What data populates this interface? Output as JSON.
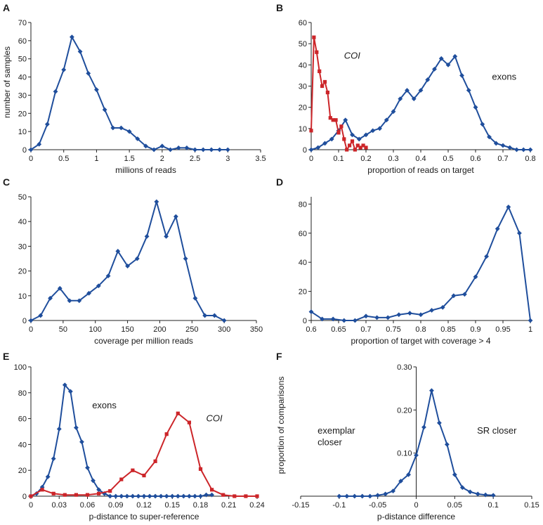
{
  "colors": {
    "blue": "#1f4e9c",
    "red": "#cc2529",
    "axis": "#222222"
  },
  "chart_data": [
    {
      "letter": "A",
      "type": "line",
      "xlabel": "millions of reads",
      "ylabel": "number of samples",
      "xlim": [
        0,
        3.5
      ],
      "ylim": [
        0,
        70
      ],
      "xticks": [
        0,
        0.5,
        1,
        1.5,
        2,
        2.5,
        3,
        3.5
      ],
      "xticklabels": [
        "0",
        "0.5",
        "1",
        "1.5",
        "2",
        "2.5",
        "3",
        "3.5"
      ],
      "yticks": [
        0,
        10,
        20,
        30,
        40,
        50,
        60,
        70
      ],
      "yticklabels": [
        "0",
        "10",
        "20",
        "30",
        "40",
        "50",
        "60",
        "70"
      ],
      "series": [
        {
          "color": "#1f4e9c",
          "marker": "diamond",
          "x": [
            0,
            0.125,
            0.25,
            0.375,
            0.5,
            0.625,
            0.75,
            0.875,
            1.0,
            1.125,
            1.25,
            1.375,
            1.5,
            1.625,
            1.75,
            1.875,
            2.0,
            2.125,
            2.25,
            2.375,
            2.5,
            2.625,
            2.75,
            2.875,
            3.0
          ],
          "y": [
            0,
            3,
            14,
            32,
            44,
            62,
            54,
            42,
            33,
            22,
            12,
            12,
            10,
            6,
            2,
            0,
            2,
            0,
            1,
            1,
            0,
            0,
            0,
            0,
            0
          ]
        }
      ],
      "annotations": []
    },
    {
      "letter": "B",
      "type": "line",
      "xlabel": "proportion of reads on target",
      "ylabel": "",
      "xlim": [
        0,
        0.8
      ],
      "ylim": [
        0,
        60
      ],
      "xticks": [
        0,
        0.1,
        0.2,
        0.3,
        0.4,
        0.5,
        0.6,
        0.7,
        0.8
      ],
      "xticklabels": [
        "0",
        "0.1",
        "0.2",
        "0.3",
        "0.4",
        "0.5",
        "0.6",
        "0.7",
        "0.8"
      ],
      "yticks": [
        0,
        10,
        20,
        30,
        40,
        50,
        60
      ],
      "yticklabels": [
        "0",
        "10",
        "20",
        "30",
        "40",
        "50",
        "60"
      ],
      "series": [
        {
          "name": "exons",
          "color": "#1f4e9c",
          "marker": "diamond",
          "x": [
            0,
            0.025,
            0.05,
            0.075,
            0.1,
            0.125,
            0.15,
            0.175,
            0.2,
            0.225,
            0.25,
            0.275,
            0.3,
            0.325,
            0.35,
            0.375,
            0.4,
            0.425,
            0.45,
            0.475,
            0.5,
            0.525,
            0.55,
            0.575,
            0.6,
            0.625,
            0.65,
            0.675,
            0.7,
            0.725,
            0.75,
            0.775,
            0.8
          ],
          "y": [
            0,
            1,
            3,
            5,
            9,
            14,
            7,
            5,
            7,
            9,
            10,
            14,
            18,
            24,
            28,
            24,
            28,
            33,
            38,
            43,
            40,
            44,
            35,
            28,
            20,
            12,
            6,
            3,
            2,
            1,
            0,
            0,
            0
          ]
        },
        {
          "name": "COI",
          "color": "#cc2529",
          "marker": "square",
          "x": [
            0,
            0.01,
            0.02,
            0.03,
            0.04,
            0.05,
            0.06,
            0.07,
            0.08,
            0.09,
            0.1,
            0.11,
            0.12,
            0.13,
            0.14,
            0.15,
            0.16,
            0.17,
            0.18,
            0.19,
            0.2
          ],
          "y": [
            9,
            53,
            46,
            37,
            30,
            32,
            27,
            15,
            14,
            14,
            8,
            11,
            5,
            0,
            2,
            4,
            0,
            2,
            1,
            2,
            1
          ]
        }
      ],
      "annotations": [
        {
          "text": "COI",
          "italic": true,
          "x": 0.12,
          "y": 43
        },
        {
          "text": "exons",
          "italic": false,
          "x": 0.66,
          "y": 33
        }
      ]
    },
    {
      "letter": "C",
      "type": "line",
      "xlabel": "coverage per million reads",
      "ylabel": "",
      "xlim": [
        0,
        350
      ],
      "ylim": [
        0,
        50
      ],
      "xticks": [
        0,
        50,
        100,
        150,
        200,
        250,
        300,
        350
      ],
      "xticklabels": [
        "0",
        "50",
        "100",
        "150",
        "200",
        "250",
        "300",
        "350"
      ],
      "yticks": [
        0,
        10,
        20,
        30,
        40,
        50
      ],
      "yticklabels": [
        "0",
        "10",
        "20",
        "30",
        "40",
        "50"
      ],
      "series": [
        {
          "color": "#1f4e9c",
          "marker": "diamond",
          "x": [
            0,
            15,
            30,
            45,
            60,
            75,
            90,
            105,
            120,
            135,
            150,
            165,
            180,
            195,
            210,
            225,
            240,
            255,
            270,
            285,
            300
          ],
          "y": [
            0,
            2,
            9,
            13,
            8,
            8,
            11,
            14,
            18,
            28,
            22,
            25,
            34,
            48,
            34,
            42,
            25,
            9,
            2,
            2,
            0
          ]
        }
      ],
      "annotations": []
    },
    {
      "letter": "D",
      "type": "line",
      "xlabel": "proportion of target with coverage > 4",
      "ylabel": "",
      "xlim": [
        0.6,
        1.0
      ],
      "ylim": [
        0,
        85
      ],
      "xticks": [
        0.6,
        0.65,
        0.7,
        0.75,
        0.8,
        0.85,
        0.9,
        0.95,
        1.0
      ],
      "xticklabels": [
        "0.6",
        "0.65",
        "0.7",
        "0.75",
        "0.8",
        "0.85",
        "0.9",
        "0.95",
        "1"
      ],
      "yticks": [
        0,
        20,
        40,
        60,
        80
      ],
      "yticklabels": [
        "0",
        "20",
        "40",
        "60",
        "80"
      ],
      "series": [
        {
          "color": "#1f4e9c",
          "marker": "diamond",
          "x": [
            0.6,
            0.62,
            0.64,
            0.66,
            0.68,
            0.7,
            0.72,
            0.74,
            0.76,
            0.78,
            0.8,
            0.82,
            0.84,
            0.86,
            0.88,
            0.9,
            0.92,
            0.94,
            0.96,
            0.98,
            1.0
          ],
          "y": [
            6,
            1,
            1,
            0,
            0,
            3,
            2,
            2,
            4,
            5,
            4,
            7,
            9,
            17,
            18,
            30,
            44,
            63,
            78,
            60,
            0
          ]
        }
      ],
      "annotations": []
    },
    {
      "letter": "E",
      "type": "line",
      "xlabel": "p-distance to super-reference",
      "ylabel": "",
      "xlim": [
        0,
        0.24
      ],
      "ylim": [
        0,
        100
      ],
      "xticks": [
        0,
        0.03,
        0.06,
        0.09,
        0.12,
        0.15,
        0.18,
        0.21,
        0.24
      ],
      "xticklabels": [
        "0",
        "0.03",
        "0.06",
        "0.09",
        "0.12",
        "0.15",
        "0.18",
        "0.21",
        "0.24"
      ],
      "yticks": [
        0,
        20,
        40,
        60,
        80,
        100
      ],
      "yticklabels": [
        "0",
        "20",
        "40",
        "60",
        "80",
        "100"
      ],
      "series": [
        {
          "name": "exons",
          "color": "#1f4e9c",
          "marker": "diamond",
          "x": [
            0,
            0.006,
            0.012,
            0.018,
            0.024,
            0.03,
            0.036,
            0.042,
            0.048,
            0.054,
            0.06,
            0.066,
            0.072,
            0.078,
            0.084,
            0.09,
            0.096,
            0.102,
            0.108,
            0.114,
            0.12,
            0.126,
            0.132,
            0.138,
            0.144,
            0.15,
            0.156,
            0.162,
            0.168,
            0.174,
            0.18,
            0.186,
            0.192
          ],
          "y": [
            0,
            2,
            7,
            15,
            29,
            52,
            86,
            81,
            53,
            42,
            22,
            12,
            5,
            2,
            0,
            0,
            0,
            0,
            0,
            0,
            0,
            0,
            0,
            0,
            0,
            0,
            0,
            0,
            0,
            0,
            0,
            1,
            1
          ]
        },
        {
          "name": "COI",
          "color": "#cc2529",
          "marker": "square",
          "x": [
            0,
            0.012,
            0.024,
            0.036,
            0.048,
            0.06,
            0.072,
            0.084,
            0.096,
            0.108,
            0.12,
            0.132,
            0.144,
            0.156,
            0.168,
            0.18,
            0.192,
            0.204,
            0.216,
            0.228,
            0.24
          ],
          "y": [
            0,
            5,
            2,
            1,
            1,
            1,
            2,
            4,
            13,
            20,
            16,
            27,
            48,
            64,
            57,
            21,
            5,
            1,
            0,
            0,
            0
          ]
        }
      ],
      "annotations": [
        {
          "text": "exons",
          "italic": false,
          "x": 0.065,
          "y": 68
        },
        {
          "text": "COI",
          "italic": true,
          "x": 0.186,
          "y": 58
        }
      ]
    },
    {
      "letter": "F",
      "type": "line",
      "xlabel": "p-distance difference",
      "ylabel": "proportion of comparisons",
      "xlim": [
        -0.15,
        0.15
      ],
      "ylim": [
        0,
        0.3
      ],
      "xticks": [
        -0.15,
        -0.1,
        -0.05,
        0,
        0.05,
        0.1,
        0.15
      ],
      "xticklabels": [
        "-0.15",
        "-0.1",
        "-0.05",
        "0",
        "0.05",
        "0.1",
        "0.15"
      ],
      "yticks": [
        0.1,
        0.2,
        0.3
      ],
      "yticklabels": [
        "0.10",
        "0.20",
        "0.30"
      ],
      "y_axis_at": 0,
      "series": [
        {
          "color": "#1f4e9c",
          "marker": "diamond",
          "x": [
            -0.1,
            -0.09,
            -0.08,
            -0.07,
            -0.06,
            -0.05,
            -0.04,
            -0.03,
            -0.02,
            -0.01,
            0,
            0.01,
            0.02,
            0.03,
            0.04,
            0.05,
            0.06,
            0.07,
            0.08,
            0.09,
            0.1
          ],
          "y": [
            0,
            0,
            0,
            0,
            0,
            0.002,
            0.005,
            0.012,
            0.035,
            0.05,
            0.095,
            0.16,
            0.245,
            0.17,
            0.12,
            0.05,
            0.02,
            0.01,
            0.005,
            0.003,
            0.002
          ]
        }
      ],
      "annotations": [
        {
          "text": "exemplar",
          "italic": false,
          "x": -0.128,
          "y": 0.145
        },
        {
          "text": "closer",
          "italic": false,
          "x": -0.128,
          "y": 0.118
        },
        {
          "text": "SR closer",
          "italic": false,
          "x": 0.079,
          "y": 0.145
        }
      ]
    }
  ]
}
